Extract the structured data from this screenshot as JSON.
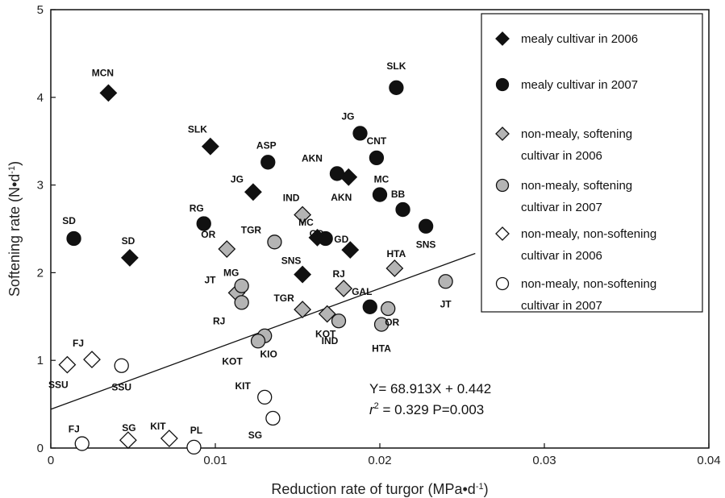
{
  "chart_data": {
    "type": "scatter",
    "xlabel": "Reduction rate of turgor  (MPa•d",
    "xlabel_sup": "-1",
    "xlabel_end": ")",
    "ylabel": "Softening rate  (N•d",
    "ylabel_sup": "-1",
    "ylabel_end": ")",
    "xlim": [
      0,
      0.04
    ],
    "ylim": [
      0,
      5
    ],
    "xticks": [
      "0",
      "0.01",
      "0.02",
      "0.03",
      "0.04"
    ],
    "yticks": [
      "0",
      "1",
      "2",
      "3",
      "4",
      "5"
    ],
    "grid": false,
    "legend_position": "top-right",
    "series": [
      {
        "name": "mealy cultivar in 2006",
        "marker": "diamond",
        "color": "#111111",
        "points": [
          {
            "label": "MCN",
            "x": 0.0035,
            "y": 4.05
          },
          {
            "label": "SLK",
            "x": 0.0097,
            "y": 3.44
          },
          {
            "label": "JG",
            "x": 0.0123,
            "y": 2.92
          },
          {
            "label": "SD",
            "x": 0.0048,
            "y": 2.17
          },
          {
            "label": "AKN",
            "x": 0.0181,
            "y": 3.09
          },
          {
            "label": "MC",
            "x": 0.0162,
            "y": 2.4
          },
          {
            "label": "GD",
            "x": 0.0182,
            "y": 2.26
          },
          {
            "label": "SNS",
            "x": 0.0153,
            "y": 1.98
          }
        ]
      },
      {
        "name": "mealy cultivar in 2007",
        "marker": "circle",
        "color": "#111111",
        "points": [
          {
            "label": "SLK",
            "x": 0.021,
            "y": 4.11
          },
          {
            "label": "JG",
            "x": 0.0188,
            "y": 3.59
          },
          {
            "label": "CNT",
            "x": 0.0198,
            "y": 3.31
          },
          {
            "label": "ASP",
            "x": 0.0132,
            "y": 3.26
          },
          {
            "label": "AKN",
            "x": 0.0174,
            "y": 3.13
          },
          {
            "label": "MC",
            "x": 0.02,
            "y": 2.89
          },
          {
            "label": "BB",
            "x": 0.0214,
            "y": 2.72
          },
          {
            "label": "SD",
            "x": 0.0014,
            "y": 2.39
          },
          {
            "label": "RG",
            "x": 0.0093,
            "y": 2.56
          },
          {
            "label": "GD",
            "x": 0.0167,
            "y": 2.39
          },
          {
            "label": "SNS",
            "x": 0.0228,
            "y": 2.53
          },
          {
            "label": "GAL",
            "x": 0.0194,
            "y": 1.61
          }
        ]
      },
      {
        "name": "non-mealy, softening cultivar in 2006",
        "marker": "diamond",
        "color": "#b4b4b4",
        "points": [
          {
            "label": "IND",
            "x": 0.0153,
            "y": 2.66
          },
          {
            "label": "OR",
            "x": 0.0107,
            "y": 2.27
          },
          {
            "label": "JT",
            "x": 0.0113,
            "y": 1.77
          },
          {
            "label": "TGR",
            "x": 0.0153,
            "y": 1.58
          },
          {
            "label": "KOT",
            "x": 0.0168,
            "y": 1.53
          },
          {
            "label": "RJ",
            "x": 0.0178,
            "y": 1.82
          },
          {
            "label": "HTA",
            "x": 0.0209,
            "y": 2.05
          }
        ]
      },
      {
        "name": "non-mealy, softening cultivar in 2007",
        "marker": "circle",
        "color": "#b4b4b4",
        "points": [
          {
            "label": "TGR",
            "x": 0.0136,
            "y": 2.35
          },
          {
            "label": "MG",
            "x": 0.0116,
            "y": 1.85
          },
          {
            "label": "RJ",
            "x": 0.0116,
            "y": 1.66
          },
          {
            "label": "JT",
            "x": 0.024,
            "y": 1.9
          },
          {
            "label": "OR",
            "x": 0.0205,
            "y": 1.59
          },
          {
            "label": "IND",
            "x": 0.0175,
            "y": 1.45
          },
          {
            "label": "HTA",
            "x": 0.0201,
            "y": 1.41
          },
          {
            "label": "KIO",
            "x": 0.013,
            "y": 1.28
          },
          {
            "label": "KOT",
            "x": 0.0126,
            "y": 1.22
          }
        ]
      },
      {
        "name": "non-mealy, non-softening cultivar in 2006",
        "marker": "diamond",
        "color": "#ffffff",
        "points": [
          {
            "label": "SSU",
            "x": 0.001,
            "y": 0.95
          },
          {
            "label": "FJ",
            "x": 0.0025,
            "y": 1.01
          },
          {
            "label": "SG",
            "x": 0.0047,
            "y": 0.09
          },
          {
            "label": "KIT",
            "x": 0.0072,
            "y": 0.11
          }
        ]
      },
      {
        "name": "non-mealy, non-softening cultivar in 2007",
        "marker": "circle",
        "color": "#ffffff",
        "points": [
          {
            "label": "SSU",
            "x": 0.0043,
            "y": 0.94
          },
          {
            "label": "FJ",
            "x": 0.0019,
            "y": 0.05
          },
          {
            "label": "PL",
            "x": 0.0087,
            "y": 0.01
          },
          {
            "label": "KIT",
            "x": 0.013,
            "y": 0.58
          },
          {
            "label": "SG",
            "x": 0.0135,
            "y": 0.34
          }
        ]
      }
    ],
    "regression": {
      "slope": 68.913,
      "intercept": 0.442,
      "x_range": [
        0,
        0.0258
      ],
      "equation_text": "Y= 68.913X + 0.442",
      "r2_symbol": "r",
      "r2_sup": "2",
      "r2_text": " = 0.329  P=0.003"
    },
    "legend": [
      {
        "marker": "diamond",
        "color": "#111111",
        "text": [
          "mealy cultivar in 2006"
        ]
      },
      {
        "marker": "circle",
        "color": "#111111",
        "text": [
          "mealy cultivar in 2007"
        ]
      },
      {
        "marker": "diamond",
        "color": "#b4b4b4",
        "text": [
          "non-mealy, softening",
          "cultivar in 2006"
        ]
      },
      {
        "marker": "circle",
        "color": "#b4b4b4",
        "text": [
          "non-mealy, softening",
          "cultivar in 2007"
        ]
      },
      {
        "marker": "diamond",
        "color": "#ffffff",
        "text": [
          "non-mealy, non-softening",
          "cultivar in 2006"
        ]
      },
      {
        "marker": "circle",
        "color": "#ffffff",
        "text": [
          "non-mealy, non-softening",
          "cultivar in 2007"
        ]
      }
    ]
  }
}
